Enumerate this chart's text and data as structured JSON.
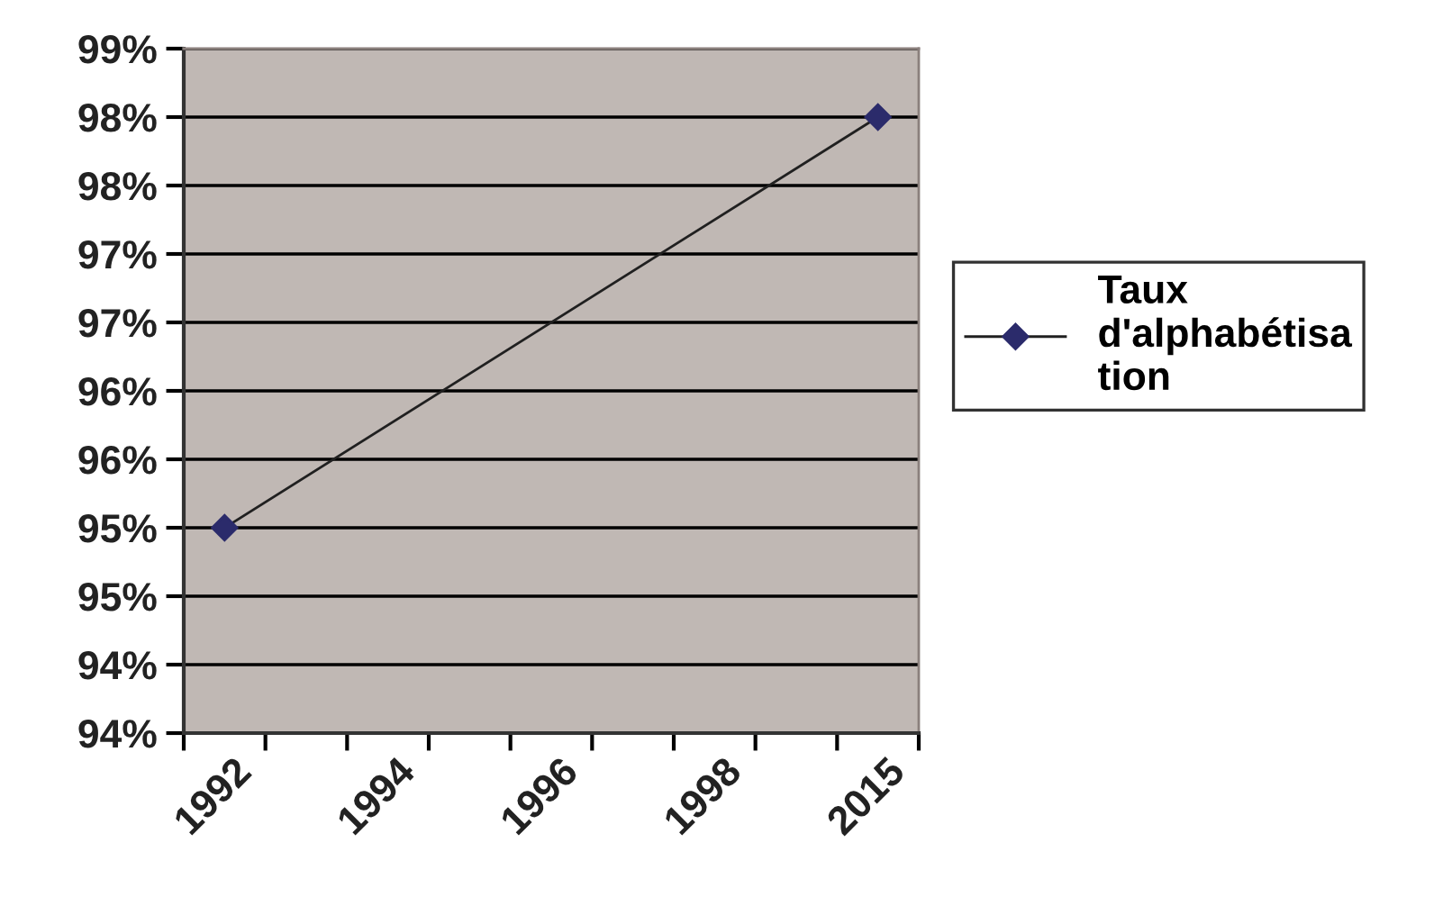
{
  "chart_data": {
    "type": "line",
    "categories": [
      "1992",
      null,
      "1994",
      null,
      "1996",
      null,
      "1998",
      null,
      "2015"
    ],
    "series": [
      {
        "name": "Taux d'alphabétisation",
        "color": "#2b2b6b",
        "values": [
          95.5,
          null,
          null,
          null,
          null,
          null,
          null,
          null,
          98.5
        ]
      }
    ],
    "ylim": [
      94,
      99
    ],
    "yticks": [
      {
        "value": 94,
        "label": "94%"
      },
      {
        "value": 94.5,
        "label": "94%"
      },
      {
        "value": 95,
        "label": "95%"
      },
      {
        "value": 95.5,
        "label": "95%"
      },
      {
        "value": 96,
        "label": "96%"
      },
      {
        "value": 96.5,
        "label": "96%"
      },
      {
        "value": 97,
        "label": "97%"
      },
      {
        "value": 97.5,
        "label": "97%"
      },
      {
        "value": 98,
        "label": "98%"
      },
      {
        "value": 98.5,
        "label": "98%"
      },
      {
        "value": 99,
        "label": "99%"
      }
    ],
    "grid": "y",
    "legend": "right",
    "marker": "diamond",
    "line_style": "solid"
  }
}
